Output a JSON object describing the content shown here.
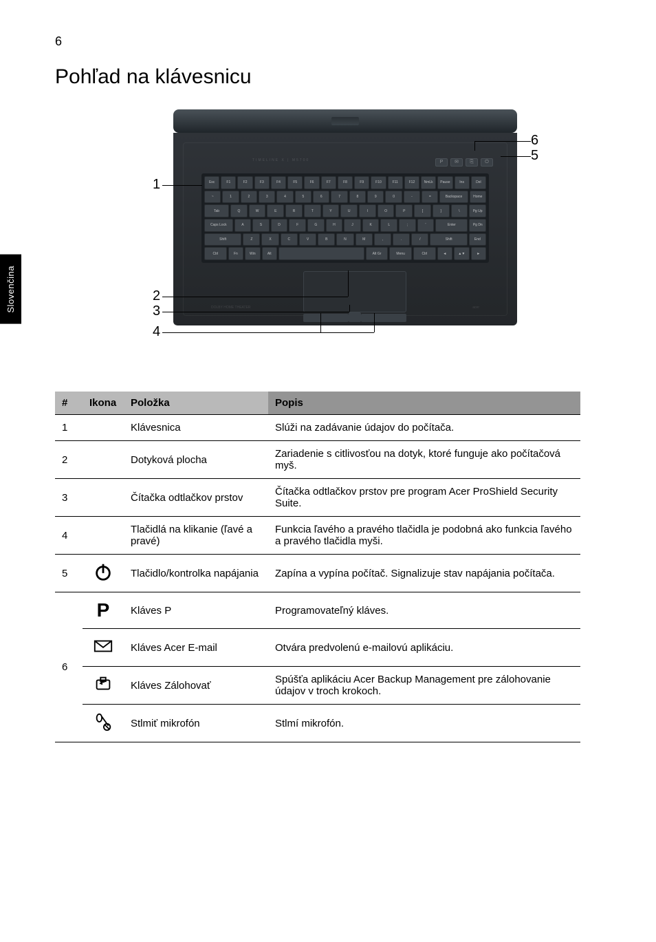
{
  "page": {
    "number": "6",
    "heading": "Pohľad na klávesnicu",
    "side_tab": "Slovenčina"
  },
  "diagram": {
    "callouts": [
      "1",
      "2",
      "3",
      "4",
      "5",
      "6"
    ],
    "label_strip": "TIMELINE X | M5700",
    "status_left": "DOLBY HOME THEATER",
    "status_right": "acer"
  },
  "keyboard": {
    "row0": [
      "Esc",
      "F1",
      "F2",
      "F3",
      "F4",
      "F5",
      "F6",
      "F7",
      "F8",
      "F9",
      "F10",
      "F11",
      "F12",
      "NmLk",
      "Pause",
      "Ins",
      "Del"
    ],
    "row1": [
      "~",
      "1",
      "2",
      "3",
      "4",
      "5",
      "6",
      "7",
      "8",
      "9",
      "0",
      "-",
      "=",
      "Backspace",
      "Home"
    ],
    "row2": [
      "Tab",
      "Q",
      "W",
      "E",
      "R",
      "T",
      "Y",
      "U",
      "I",
      "O",
      "P",
      "[",
      "]",
      "\\",
      "Pg Up"
    ],
    "row3": [
      "Caps Lock",
      "A",
      "S",
      "D",
      "F",
      "G",
      "H",
      "J",
      "K",
      "L",
      ";",
      "'",
      "Enter",
      "Pg Dn"
    ],
    "row4": [
      "Shift",
      "Z",
      "X",
      "C",
      "V",
      "B",
      "N",
      "M",
      ",",
      ".",
      "/",
      "Shift",
      "End"
    ],
    "row5": [
      "Ctrl",
      "Fn",
      "Win",
      "Alt",
      "",
      "Alt Gr",
      "Menu",
      "Ctrl",
      "◄",
      "▲▼",
      "►"
    ]
  },
  "table": {
    "headers": {
      "num": "#",
      "ikona": "Ikona",
      "polozka": "Položka",
      "popis": "Popis"
    },
    "rows": [
      {
        "num": "1",
        "icon": "",
        "item": "Klávesnica",
        "desc": "Slúži na zadávanie údajov do počítača."
      },
      {
        "num": "2",
        "icon": "",
        "item": "Dotyková plocha",
        "desc": "Zariadenie s citlivosťou na dotyk, ktoré funguje ako počítačová myš."
      },
      {
        "num": "3",
        "icon": "",
        "item": "Čítačka odtlačkov prstov",
        "desc": "Čítačka odtlačkov prstov pre program Acer ProShield Security Suite."
      },
      {
        "num": "4",
        "icon": "",
        "item": "Tlačidlá na klikanie (ľavé a pravé)",
        "desc": "Funkcia ľavého a pravého tlačidla je podobná ako funkcia ľavého a pravého tlačidla myši."
      },
      {
        "num": "5",
        "icon": "power",
        "item": "Tlačidlo/kontrolka napájania",
        "desc": "Zapína a vypína počítač. Signalizuje stav napájania počítača."
      },
      {
        "num": "6",
        "icon": "p-key",
        "item": "Kláves P",
        "desc": "Programovateľný kláves."
      },
      {
        "num": "",
        "icon": "mail",
        "item": "Kláves Acer E-mail",
        "desc": "Otvára predvolenú e-mailovú aplikáciu."
      },
      {
        "num": "",
        "icon": "backup",
        "item": "Kláves Zálohovať",
        "desc": "Spúšťa aplikáciu Acer Backup Management pre zálohovanie údajov v troch krokoch."
      },
      {
        "num": "",
        "icon": "mic-mute",
        "item": "Stlmiť mikrofón",
        "desc": "Stlmí mikrofón."
      }
    ]
  },
  "icons": {
    "power": "⏻",
    "p-key": "P"
  }
}
